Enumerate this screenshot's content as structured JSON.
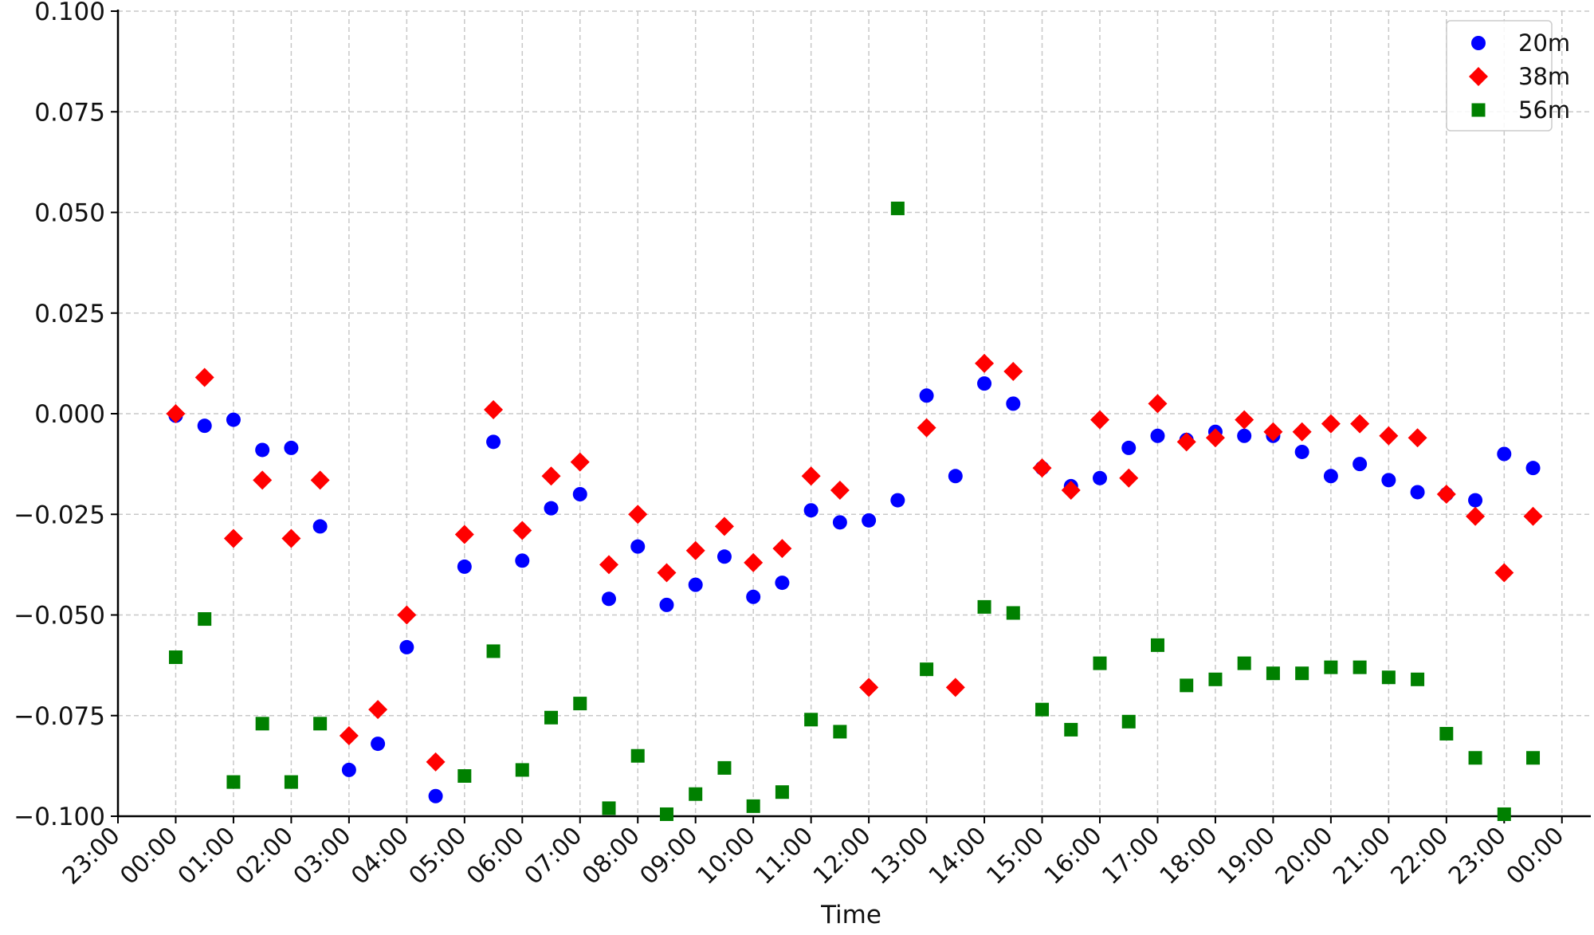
{
  "chart_data": {
    "type": "scatter",
    "title": "",
    "xlabel": "Time",
    "ylabel": "",
    "ylim": [
      -0.1,
      0.1
    ],
    "xlim": [
      "23:00",
      "00:00"
    ],
    "grid": true,
    "legend_position": "top-right",
    "x_tick_labels": [
      "23:00",
      "00:00",
      "01:00",
      "02:00",
      "03:00",
      "04:00",
      "05:00",
      "06:00",
      "07:00",
      "08:00",
      "09:00",
      "10:00",
      "11:00",
      "12:00",
      "13:00",
      "14:00",
      "15:00",
      "16:00",
      "17:00",
      "18:00",
      "19:00",
      "20:00",
      "21:00",
      "22:00",
      "23:00",
      "00:00"
    ],
    "y_tick_labels": [
      "−0.100",
      "−0.075",
      "−0.050",
      "−0.025",
      "0.000",
      "0.025",
      "0.050",
      "0.075",
      "0.100"
    ],
    "x": [
      "00:00",
      "00:30",
      "01:00",
      "01:30",
      "02:00",
      "02:30",
      "03:00",
      "03:30",
      "04:00",
      "04:30",
      "05:00",
      "05:30",
      "06:00",
      "06:30",
      "07:00",
      "07:30",
      "08:00",
      "08:30",
      "09:00",
      "09:30",
      "10:00",
      "10:30",
      "11:00",
      "11:30",
      "12:00",
      "12:30",
      "13:00",
      "13:30",
      "14:00",
      "14:30",
      "15:00",
      "15:30",
      "16:00",
      "16:30",
      "17:00",
      "17:30",
      "18:00",
      "18:30",
      "19:00",
      "19:30",
      "20:00",
      "20:30",
      "21:00",
      "21:30",
      "22:00",
      "22:30",
      "23:00",
      "23:30"
    ],
    "series": [
      {
        "name": "20m",
        "marker": "circle",
        "color": "#0000ff",
        "values": [
          -0.0005,
          -0.003,
          -0.0015,
          -0.009,
          -0.0085,
          -0.028,
          -0.0885,
          -0.082,
          -0.058,
          -0.095,
          -0.038,
          -0.007,
          -0.0365,
          -0.0235,
          -0.02,
          -0.046,
          -0.033,
          -0.0475,
          -0.0425,
          -0.0355,
          -0.0455,
          -0.042,
          -0.024,
          -0.027,
          -0.0265,
          -0.0215,
          0.0045,
          -0.0155,
          0.0075,
          0.0025,
          -0.0135,
          -0.018,
          -0.016,
          -0.0085,
          -0.0055,
          -0.0065,
          -0.0045,
          -0.0055,
          -0.0055,
          -0.0095,
          -0.0155,
          -0.0125,
          -0.0165,
          -0.0195,
          -0.02,
          -0.0215,
          -0.01,
          -0.0135
        ]
      },
      {
        "name": "38m",
        "marker": "diamond",
        "color": "#ff0000",
        "values": [
          0.0,
          0.009,
          -0.031,
          -0.0165,
          -0.031,
          -0.0165,
          -0.08,
          -0.0735,
          -0.05,
          -0.0865,
          -0.03,
          0.001,
          -0.029,
          -0.0155,
          -0.012,
          -0.0375,
          -0.025,
          -0.0395,
          -0.034,
          -0.028,
          -0.037,
          -0.0335,
          -0.0155,
          -0.019,
          -0.068,
          null,
          -0.0035,
          -0.068,
          0.0125,
          0.0105,
          -0.0135,
          -0.019,
          -0.0015,
          -0.016,
          0.0025,
          -0.007,
          -0.006,
          -0.0015,
          -0.0045,
          -0.0045,
          -0.0025,
          -0.0025,
          -0.0055,
          -0.006,
          -0.02,
          -0.0255,
          -0.0395,
          -0.0255
        ]
      },
      {
        "name": "56m",
        "marker": "square",
        "color": "#008000",
        "values": [
          -0.0605,
          -0.051,
          -0.0915,
          -0.077,
          -0.0915,
          -0.077,
          null,
          null,
          null,
          null,
          -0.09,
          -0.059,
          -0.0885,
          -0.0755,
          -0.072,
          -0.098,
          -0.085,
          -0.0995,
          -0.0945,
          -0.088,
          -0.0975,
          -0.094,
          -0.076,
          -0.079,
          null,
          0.051,
          -0.0635,
          null,
          -0.048,
          -0.0495,
          -0.0735,
          -0.0785,
          -0.062,
          -0.0765,
          -0.0575,
          -0.0675,
          -0.066,
          -0.062,
          -0.0645,
          -0.0645,
          -0.063,
          -0.063,
          -0.0655,
          -0.066,
          -0.0795,
          -0.0855,
          -0.0995,
          -0.0855
        ]
      }
    ]
  }
}
